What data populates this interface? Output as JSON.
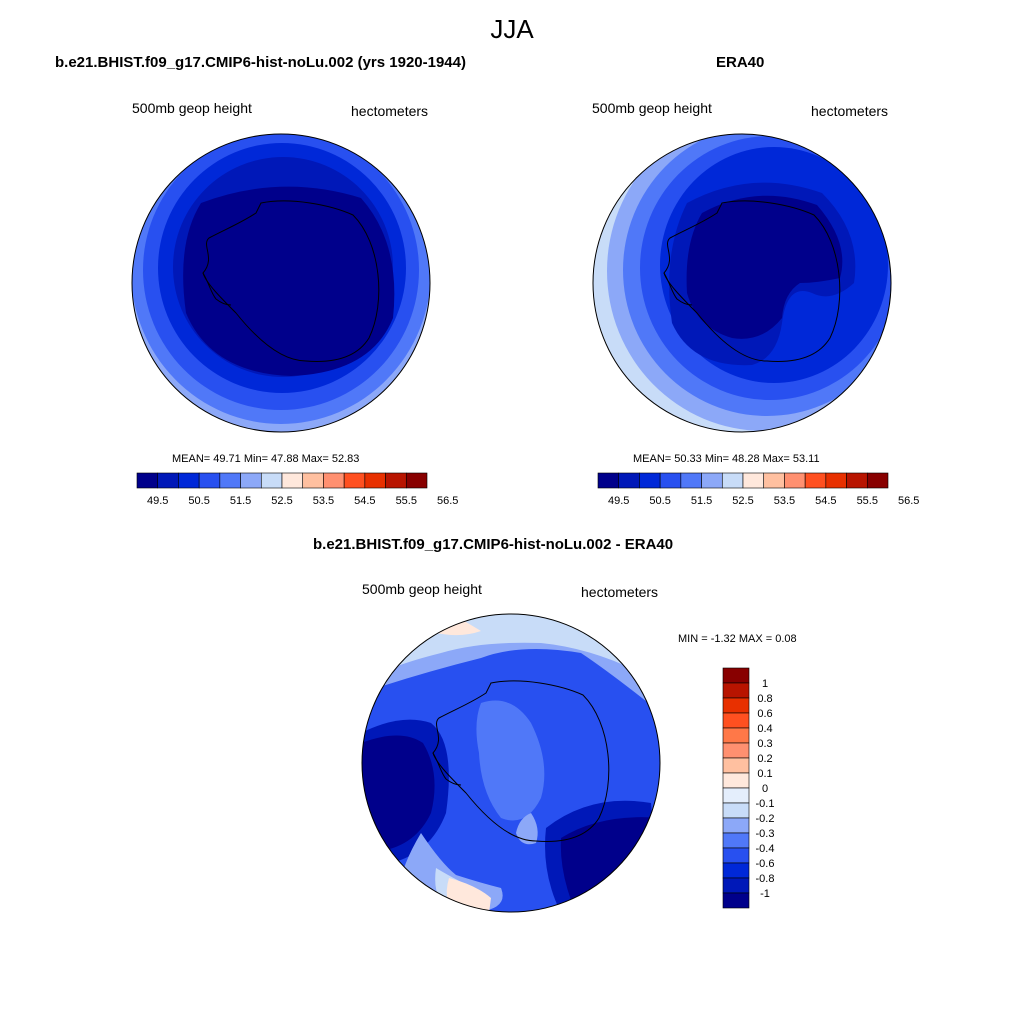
{
  "main_title": "JJA",
  "palette": [
    "#00008b",
    "#0018b8",
    "#0028d8",
    "#2850f0",
    "#5078f8",
    "#8ca8f8",
    "#c8dcf8",
    "#ffe8dc",
    "#ffc0a0",
    "#ff9070",
    "#ff5020",
    "#e83000",
    "#b81400",
    "#880000"
  ],
  "panels": [
    {
      "title": "b.e21.BHIST.f09_g17.CMIP6-hist-noLu.002 (yrs 1920-1944)",
      "left_label": "500mb geop height",
      "right_label": "hectometers",
      "stats": "MEAN=  49.71  Min=  47.88  Max=  52.83",
      "ticks": [
        "49.5",
        "50.5",
        "51.5",
        "52.5",
        "53.5",
        "54.5",
        "55.5",
        "56.5"
      ]
    },
    {
      "title": "ERA40",
      "left_label": "500mb geop height",
      "right_label": "hectometers",
      "stats": "MEAN=  50.33  Min=  48.28  Max=  53.11",
      "ticks": [
        "49.5",
        "50.5",
        "51.5",
        "52.5",
        "53.5",
        "54.5",
        "55.5",
        "56.5"
      ]
    }
  ],
  "diff": {
    "title": "b.e21.BHIST.f09_g17.CMIP6-hist-noLu.002 - ERA40",
    "left_label": "500mb geop height",
    "right_label": "hectometers",
    "stats": "MIN =  -1.32 MAX =   0.08",
    "ticks": [
      "1",
      "0.8",
      "0.6",
      "0.4",
      "0.3",
      "0.2",
      "0.1",
      "0",
      "-0.1",
      "-0.2",
      "-0.3",
      "-0.4",
      "-0.6",
      "-0.8",
      "-1"
    ]
  }
}
